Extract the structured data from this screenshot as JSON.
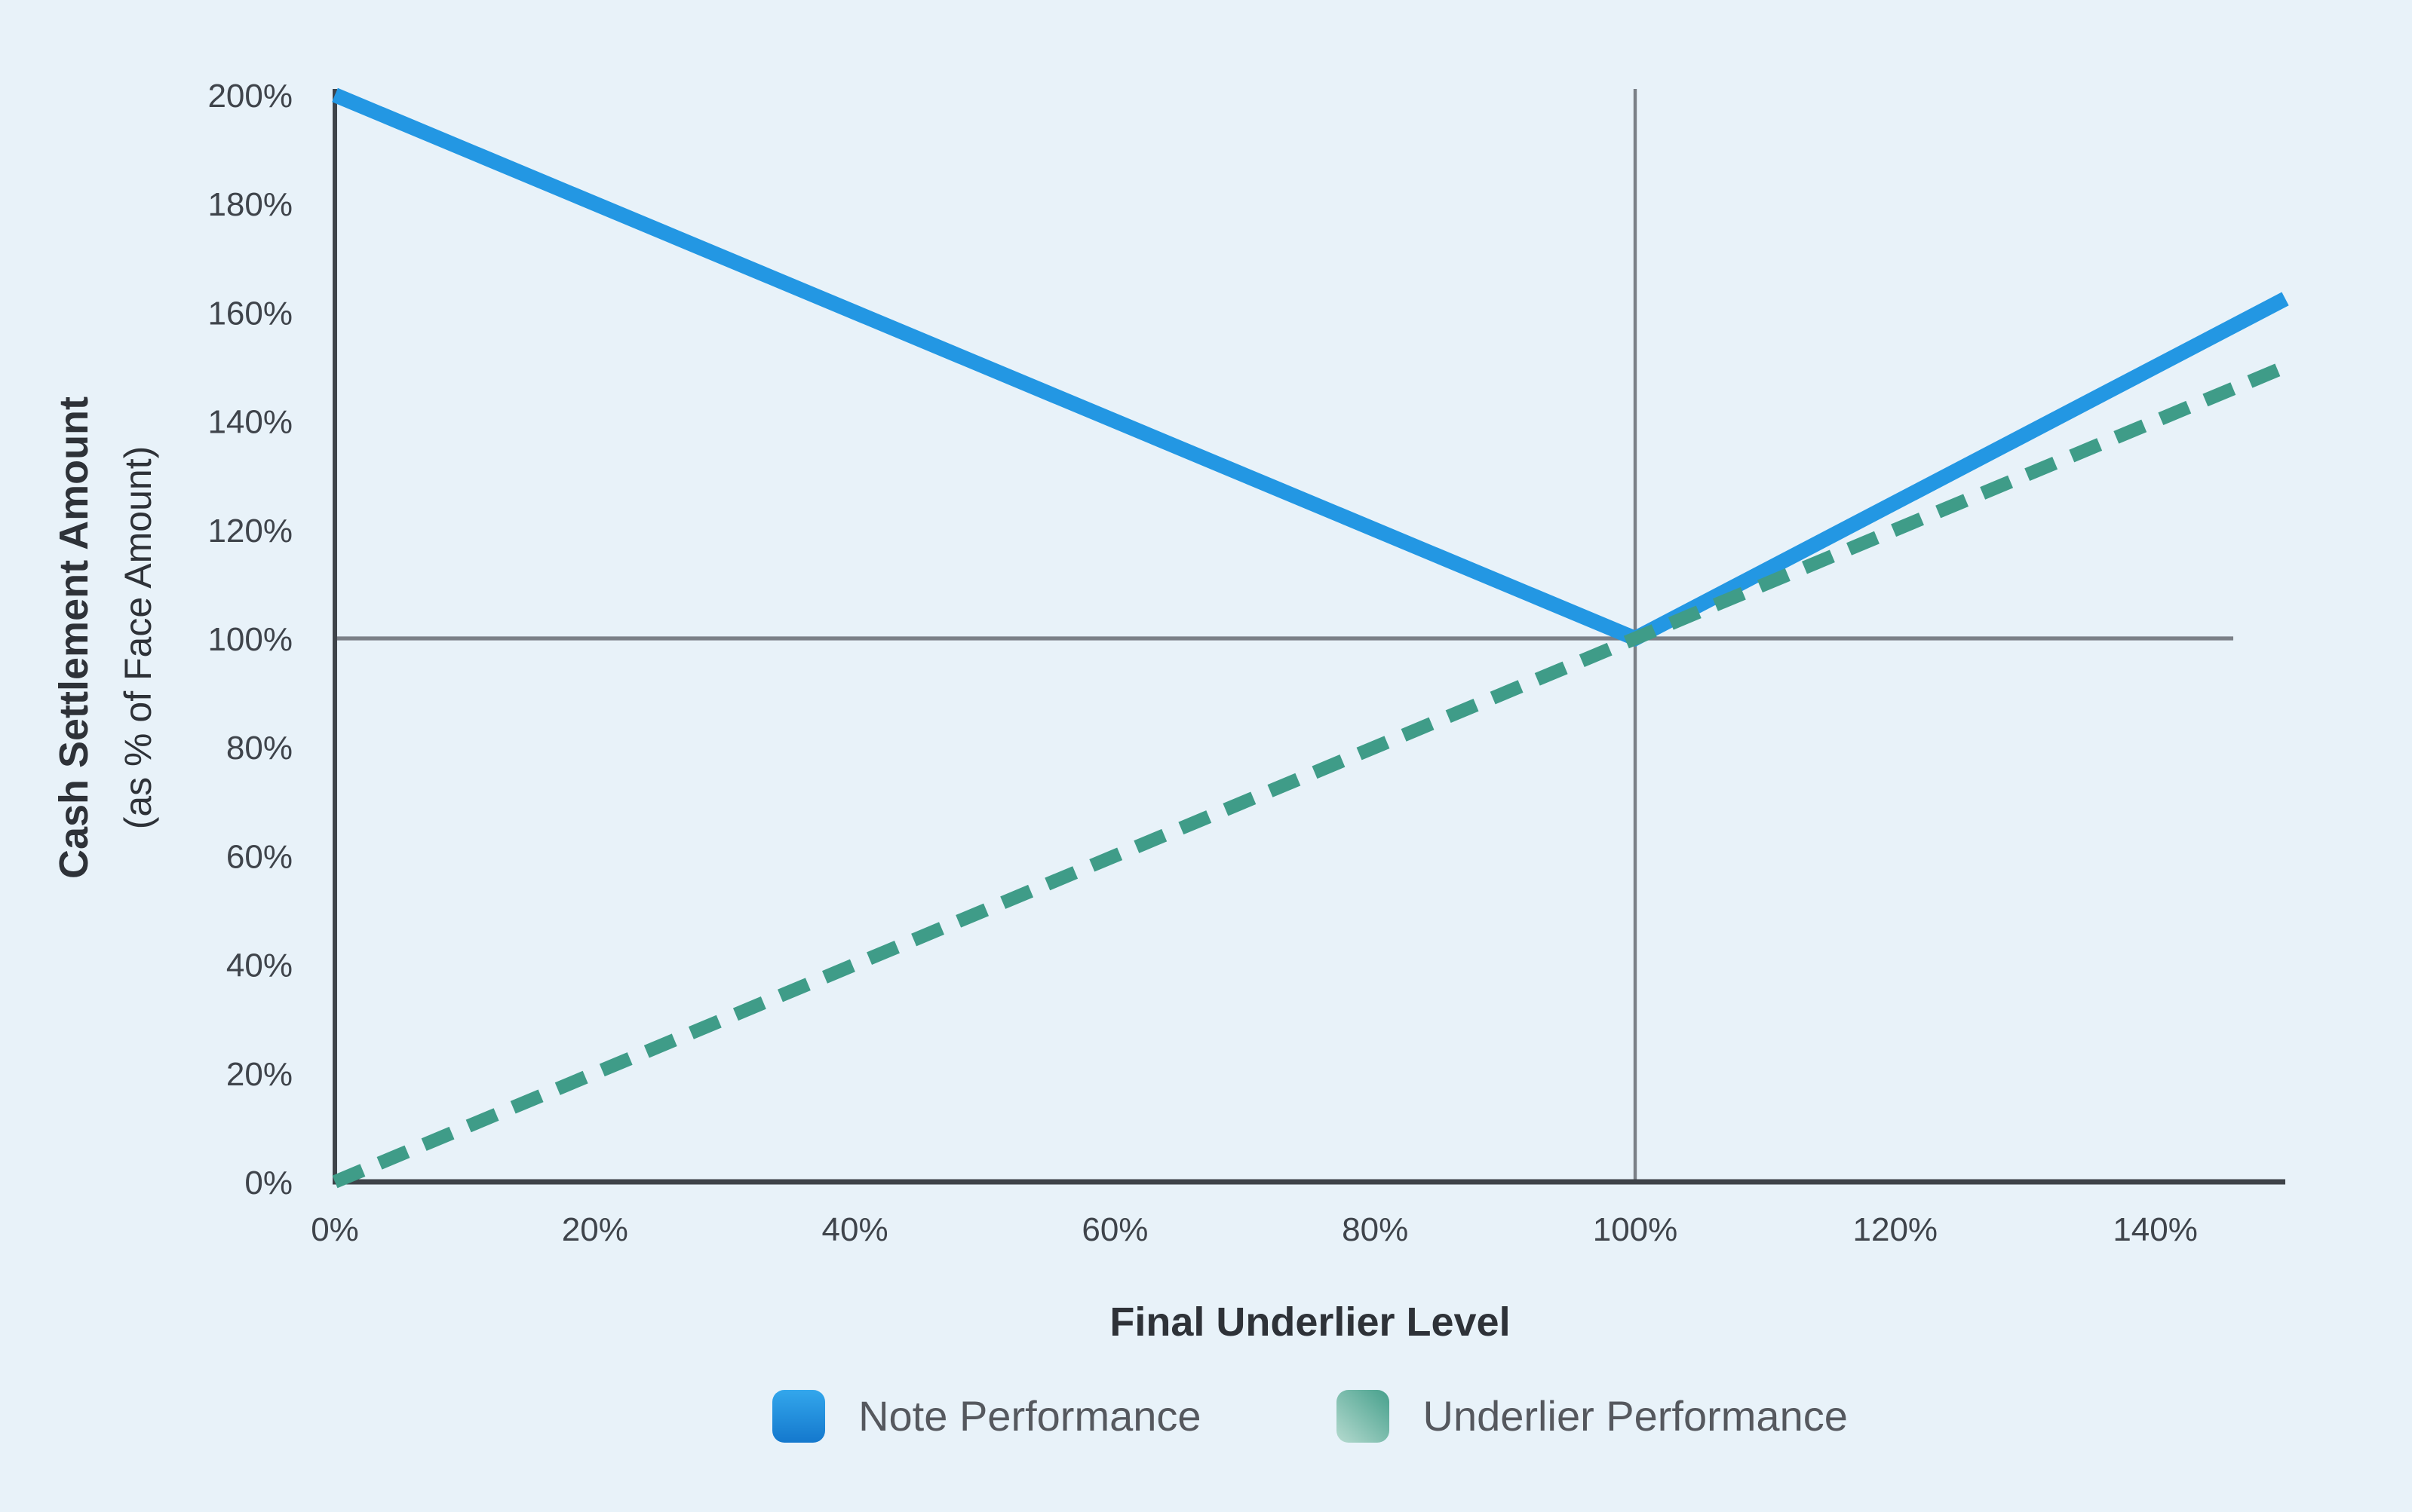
{
  "background_color": "#e8f2f9",
  "chart_data": {
    "type": "line",
    "title": "",
    "xlabel": "Final Underlier Level",
    "ylabel": "Cash Settlement Amount (as % of Face Amount)",
    "ylabel_line1": "Cash Settlement Amount",
    "ylabel_line2": "(as % of Face Amount)",
    "xlim": [
      0,
      150
    ],
    "ylim": [
      0,
      200
    ],
    "x_ticks": [
      0,
      20,
      40,
      60,
      80,
      100,
      120,
      140
    ],
    "y_ticks": [
      0,
      20,
      40,
      60,
      80,
      100,
      120,
      140,
      160,
      180,
      200
    ],
    "tick_suffix": "%",
    "grid": false,
    "legend_position": "bottom",
    "reference_lines": [
      {
        "orientation": "vertical",
        "x": 100,
        "y_from": 0,
        "y_to": 200
      },
      {
        "orientation": "horizontal",
        "y": 100,
        "x_from": 0,
        "x_to": 146
      }
    ],
    "series": [
      {
        "name": "Note Performance",
        "type": "line",
        "style": "solid",
        "color": "#2397e3",
        "points": [
          [
            0,
            200
          ],
          [
            100,
            100
          ],
          [
            150,
            162.5
          ]
        ],
        "legend_gradient": {
          "from": "#33a7ec",
          "to": "#1478cd",
          "direction": "to bottom"
        }
      },
      {
        "name": "Underlier Performance",
        "type": "line",
        "style": "dashed",
        "color": "#3f9c88",
        "points": [
          [
            0,
            0
          ],
          [
            150,
            150
          ]
        ],
        "legend_gradient": {
          "from": "#46a08c",
          "to": "#b5dacf",
          "direction": "to bottom left"
        }
      }
    ],
    "colors": {
      "axis": "#3e4349",
      "reference_line": "#7b8087",
      "tick_text": "#3f444b",
      "axis_title_text": "#2e3238",
      "legend_text": "#55585e"
    }
  }
}
